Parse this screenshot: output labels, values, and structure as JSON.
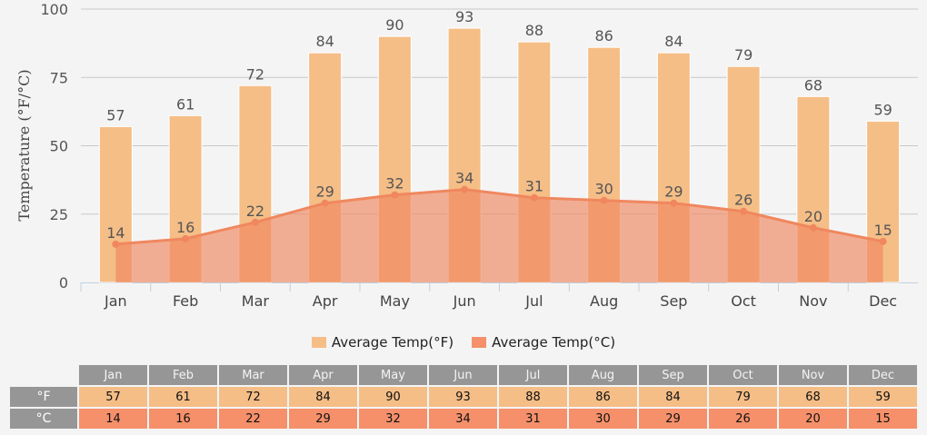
{
  "chart_data": {
    "type": "bar+area",
    "ylabel": "Temperature (°F/°C)",
    "ylim": [
      0,
      100
    ],
    "yticks": [
      0,
      25,
      50,
      75,
      100
    ],
    "grid": true,
    "legend_position": "bottom",
    "categories": [
      "Jan",
      "Feb",
      "Mar",
      "Apr",
      "May",
      "Jun",
      "Jul",
      "Aug",
      "Sep",
      "Oct",
      "Nov",
      "Dec"
    ],
    "series": [
      {
        "name": "Average Temp(°F)",
        "type": "bar",
        "color": "#f5be87",
        "values": [
          57,
          61,
          72,
          84,
          90,
          93,
          88,
          86,
          84,
          79,
          68,
          59
        ]
      },
      {
        "name": "Average Temp(°C)",
        "type": "area",
        "color": "#f0875f",
        "values": [
          14,
          16,
          22,
          29,
          32,
          34,
          31,
          30,
          29,
          26,
          20,
          15
        ]
      }
    ]
  },
  "table": {
    "row_labels": [
      "°F",
      "°C"
    ]
  }
}
